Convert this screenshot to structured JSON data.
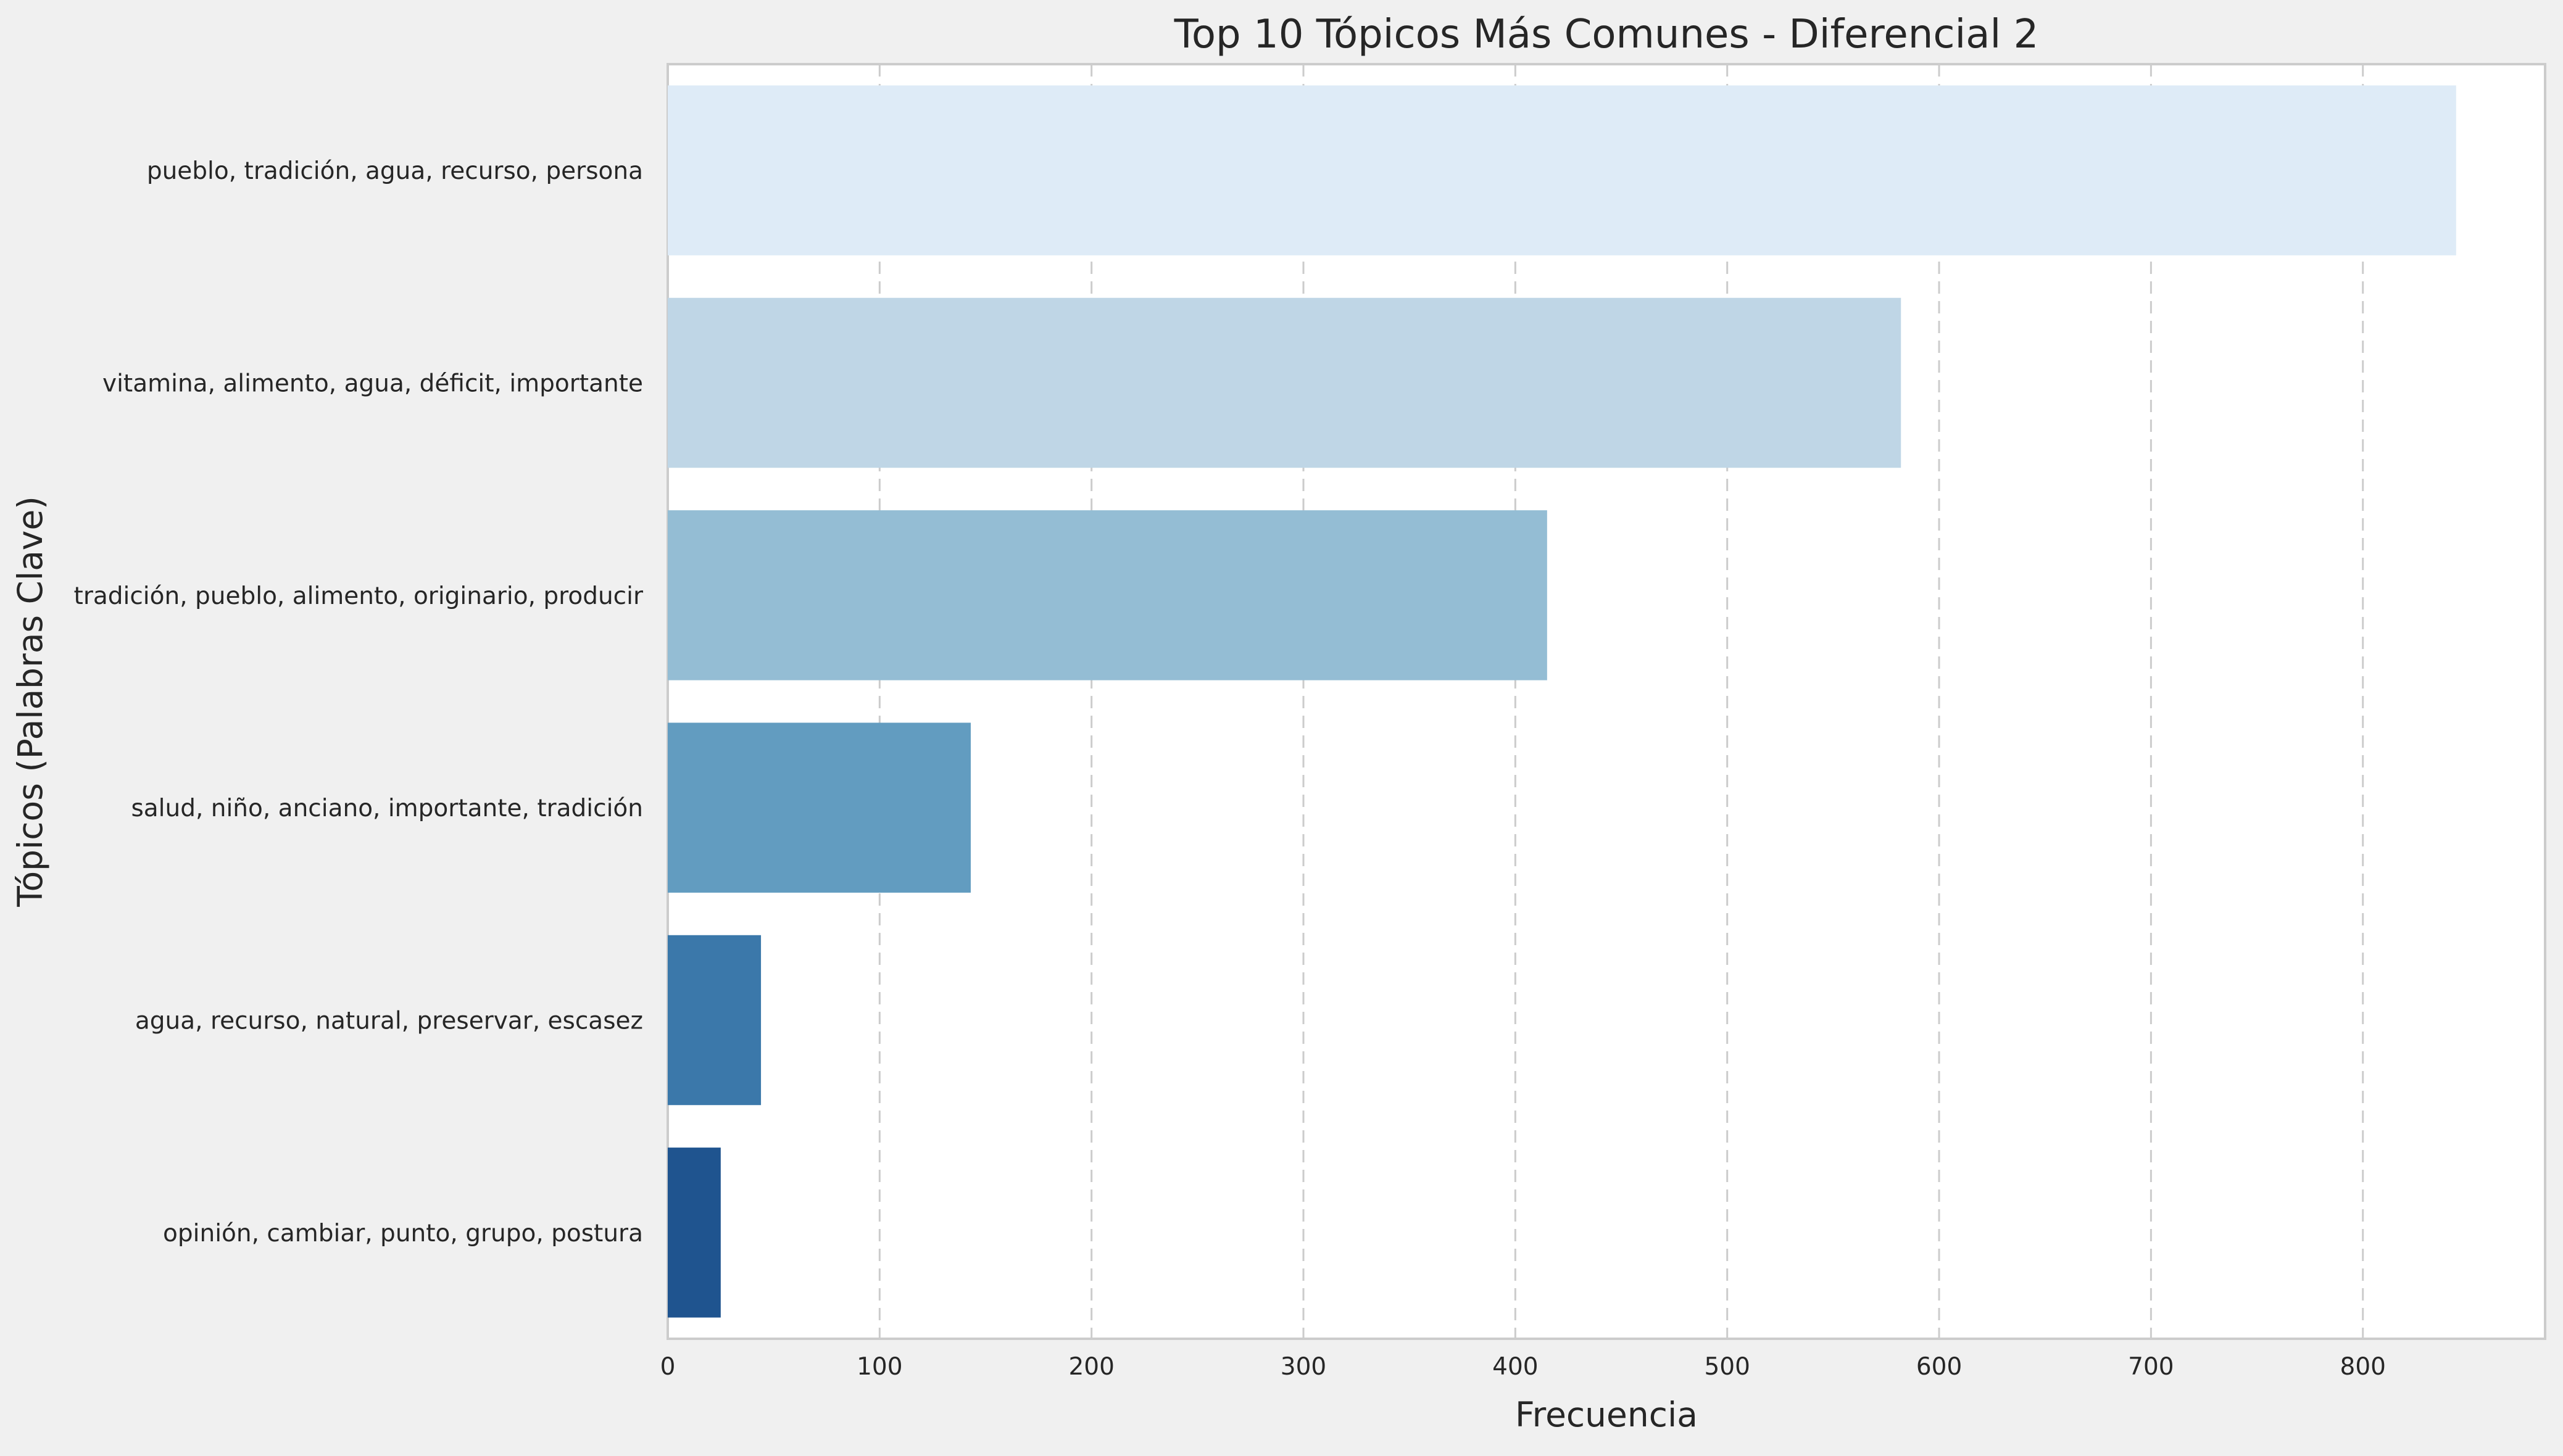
{
  "chart_data": {
    "type": "bar",
    "orientation": "horizontal",
    "title": "Top 10 Tópicos Más Comunes - Diferencial 2",
    "xlabel": "Frecuencia",
    "ylabel": "Tópicos (Palabras Clave)",
    "categories": [
      "pueblo, tradición, agua, recurso, persona",
      "vitamina, alimento, agua, déficit, importante",
      "tradición, pueblo, alimento, originario, producir",
      "salud, niño, anciano, importante, tradición",
      "agua, recurso, natural, preservar, escasez",
      "opinión, cambiar, punto, grupo, postura"
    ],
    "values": [
      844,
      582,
      415,
      143,
      44,
      25
    ],
    "xlim": [
      0,
      886
    ],
    "xticks": [
      0,
      100,
      200,
      300,
      400,
      500,
      600,
      700,
      800
    ],
    "grid": "vertical dashed",
    "colors": [
      "#deebf7",
      "#bfd6e6",
      "#94bdd4",
      "#629cc0",
      "#3b78aa",
      "#1f548f"
    ],
    "background": "#f0f0f0",
    "plot_background": "#ffffff"
  }
}
